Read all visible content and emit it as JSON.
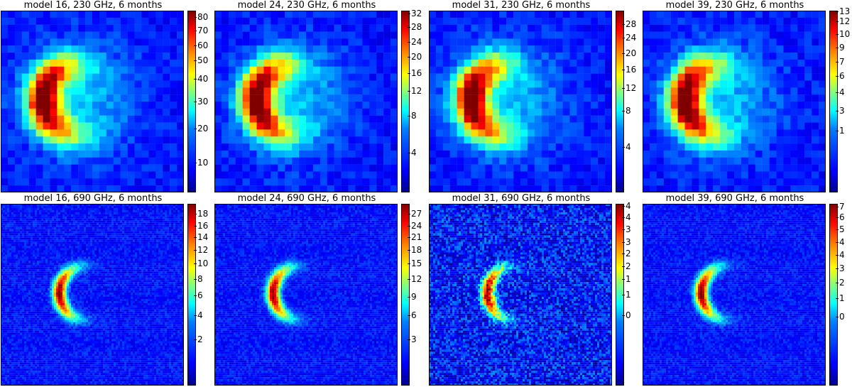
{
  "chart_data": [
    {
      "type": "heatmap",
      "title": "model 16, 230 GHz, 6 months",
      "colorbar_ticks": [
        "80",
        "70",
        "60",
        "50",
        "40",
        "30",
        "20",
        "10"
      ],
      "colorbar_levels": [
        0.965,
        0.89,
        0.81,
        0.725,
        0.625,
        0.5,
        0.35,
        0.165
      ],
      "colormap": "jet",
      "peak": 80,
      "freq": "230 GHz"
    },
    {
      "type": "heatmap",
      "title": "model 24, 230 GHz, 6 months",
      "colorbar_ticks": [
        "32",
        "28",
        "24",
        "20",
        "16",
        "12",
        "8",
        "4"
      ],
      "colorbar_levels": [
        0.985,
        0.91,
        0.83,
        0.745,
        0.655,
        0.56,
        0.42,
        0.22
      ],
      "colormap": "jet",
      "peak": 32,
      "freq": "230 GHz"
    },
    {
      "type": "heatmap",
      "title": "model 31, 230 GHz, 6 months",
      "colorbar_ticks": [
        "28",
        "24",
        "20",
        "16",
        "12",
        "8",
        "4"
      ],
      "colorbar_levels": [
        0.925,
        0.85,
        0.765,
        0.675,
        0.575,
        0.45,
        0.25
      ],
      "colormap": "jet",
      "peak": 28,
      "freq": "230 GHz"
    },
    {
      "type": "heatmap",
      "title": "model 39, 230 GHz, 6 months",
      "colorbar_ticks": [
        "13",
        "12",
        "10",
        "9",
        "7",
        "6",
        "4",
        "3",
        "1"
      ],
      "colorbar_levels": [
        0.995,
        0.94,
        0.87,
        0.795,
        0.72,
        0.64,
        0.55,
        0.45,
        0.34
      ],
      "colormap": "jet",
      "peak": 13,
      "freq": "230 GHz"
    },
    {
      "type": "heatmap",
      "title": "model 16, 690 GHz, 6 months",
      "colorbar_ticks": [
        "18",
        "16",
        "14",
        "12",
        "10",
        "8",
        "6",
        "4",
        "2"
      ],
      "colorbar_levels": [
        0.945,
        0.88,
        0.815,
        0.745,
        0.67,
        0.585,
        0.495,
        0.385,
        0.255
      ],
      "colormap": "jet",
      "peak": 18,
      "freq": "690 GHz"
    },
    {
      "type": "heatmap",
      "title": "model 24, 690 GHz, 6 months",
      "colorbar_ticks": [
        "27",
        "24",
        "21",
        "18",
        "15",
        "12",
        "9",
        "6",
        "3"
      ],
      "colorbar_levels": [
        0.945,
        0.88,
        0.815,
        0.745,
        0.67,
        0.585,
        0.49,
        0.385,
        0.255
      ],
      "colormap": "jet",
      "peak": 27,
      "freq": "690 GHz"
    },
    {
      "type": "heatmap",
      "title": "model 31, 690 GHz, 6 months",
      "colorbar_ticks": [
        "4",
        "4",
        "3",
        "3",
        "2",
        "2",
        "1",
        "1",
        "0"
      ],
      "colorbar_levels": [
        0.99,
        0.925,
        0.86,
        0.79,
        0.725,
        0.655,
        0.585,
        0.5,
        0.385
      ],
      "colormap": "jet",
      "peak": 4.3,
      "freq": "690 GHz"
    },
    {
      "type": "heatmap",
      "title": "model 39, 690 GHz, 6 months",
      "colorbar_ticks": [
        "7",
        "6",
        "5",
        "4",
        "4",
        "3",
        "2",
        "1",
        "0"
      ],
      "colorbar_levels": [
        0.985,
        0.925,
        0.86,
        0.79,
        0.72,
        0.645,
        0.565,
        0.48,
        0.38
      ],
      "colormap": "jet",
      "peak": 7.3,
      "freq": "690 GHz"
    }
  ]
}
